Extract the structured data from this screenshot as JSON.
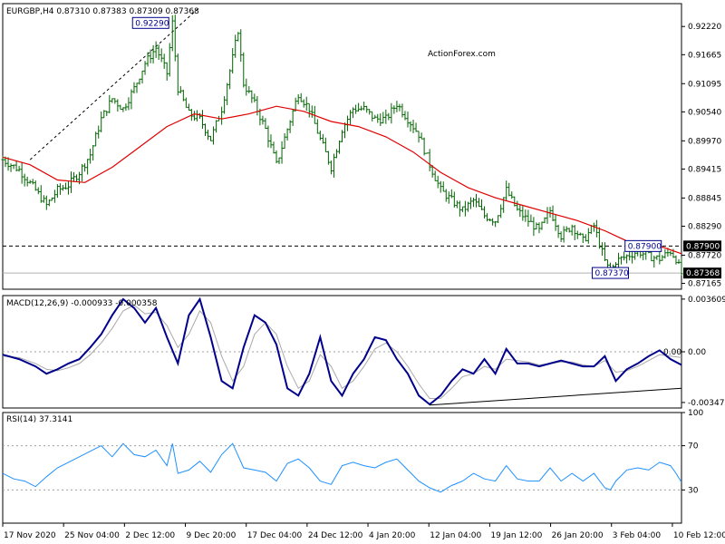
{
  "chart_data": [
    {
      "type": "candlestick",
      "panel": "price",
      "header": "EURGBP,H4  0.87310 0.87383 0.87309 0.87368",
      "watermark": "ActionForex.com",
      "ylim": [
        0.8705,
        0.9267
      ],
      "yticks": [
        "0.92220",
        "0.91665",
        "0.91095",
        "0.90540",
        "0.89970",
        "0.89415",
        "0.88845",
        "0.88290",
        "0.87720",
        "0.87165"
      ],
      "x_labels": [
        "17 Nov 2020",
        "25 Nov 04:00",
        "2 Dec 12:00",
        "9 Dec 20:00",
        "17 Dec 04:00",
        "24 Dec 12:00",
        "4 Jan 20:00",
        "12 Jan 04:00",
        "19 Jan 12:00",
        "26 Jan 20:00",
        "3 Feb 04:00",
        "10 Feb 12:00"
      ],
      "close_path": [
        [
          0,
          0.896
        ],
        [
          6,
          0.894
        ],
        [
          12,
          0.89
        ],
        [
          16,
          0.887
        ],
        [
          20,
          0.89
        ],
        [
          24,
          0.891
        ],
        [
          28,
          0.8935
        ],
        [
          32,
          0.897
        ],
        [
          36,
          0.904
        ],
        [
          40,
          0.908
        ],
        [
          44,
          0.906
        ],
        [
          48,
          0.91
        ],
        [
          52,
          0.915
        ],
        [
          56,
          0.918
        ],
        [
          60,
          0.913
        ],
        [
          62,
          0.9229
        ],
        [
          64,
          0.91
        ],
        [
          68,
          0.905
        ],
        [
          72,
          0.904
        ],
        [
          76,
          0.9
        ],
        [
          80,
          0.906
        ],
        [
          84,
          0.916
        ],
        [
          86,
          0.9215
        ],
        [
          88,
          0.911
        ],
        [
          92,
          0.907
        ],
        [
          96,
          0.902
        ],
        [
          100,
          0.895
        ],
        [
          104,
          0.902
        ],
        [
          108,
          0.909
        ],
        [
          112,
          0.906
        ],
        [
          116,
          0.9
        ],
        [
          120,
          0.8945
        ],
        [
          124,
          0.902
        ],
        [
          128,
          0.906
        ],
        [
          132,
          0.906
        ],
        [
          136,
          0.904
        ],
        [
          140,
          0.904
        ],
        [
          144,
          0.907
        ],
        [
          148,
          0.904
        ],
        [
          152,
          0.901
        ],
        [
          156,
          0.895
        ],
        [
          160,
          0.89
        ],
        [
          164,
          0.888
        ],
        [
          168,
          0.886
        ],
        [
          172,
          0.888
        ],
        [
          176,
          0.885
        ],
        [
          180,
          0.884
        ],
        [
          184,
          0.89
        ],
        [
          188,
          0.886
        ],
        [
          192,
          0.884
        ],
        [
          196,
          0.882
        ],
        [
          200,
          0.886
        ],
        [
          204,
          0.881
        ],
        [
          208,
          0.883
        ],
        [
          212,
          0.88
        ],
        [
          216,
          0.883
        ],
        [
          220,
          0.876
        ],
        [
          222,
          0.8737
        ],
        [
          224,
          0.876
        ],
        [
          228,
          0.877
        ],
        [
          232,
          0.878
        ],
        [
          236,
          0.877
        ],
        [
          240,
          0.8765
        ],
        [
          244,
          0.878
        ],
        [
          246,
          0.8765
        ],
        [
          248,
          0.8736
        ]
      ],
      "sma": [
        [
          0,
          0.8965
        ],
        [
          10,
          0.895
        ],
        [
          20,
          0.892
        ],
        [
          30,
          0.8915
        ],
        [
          40,
          0.8945
        ],
        [
          50,
          0.8985
        ],
        [
          60,
          0.9025
        ],
        [
          70,
          0.905
        ],
        [
          80,
          0.904
        ],
        [
          90,
          0.905
        ],
        [
          100,
          0.9065
        ],
        [
          110,
          0.9055
        ],
        [
          120,
          0.9035
        ],
        [
          130,
          0.9025
        ],
        [
          140,
          0.9005
        ],
        [
          150,
          0.8975
        ],
        [
          160,
          0.8935
        ],
        [
          170,
          0.8905
        ],
        [
          180,
          0.8885
        ],
        [
          190,
          0.887
        ],
        [
          200,
          0.8855
        ],
        [
          210,
          0.884
        ],
        [
          220,
          0.882
        ],
        [
          230,
          0.8795
        ],
        [
          240,
          0.879
        ],
        [
          248,
          0.8775
        ]
      ],
      "ma_color": "#e00000",
      "candle_color": "#006400",
      "levels": [
        {
          "label": "0.87900",
          "value": 0.879,
          "style": "dashed"
        },
        {
          "label": "0.87368",
          "value": 0.87368,
          "style": "solid-gray"
        }
      ],
      "annotations": [
        {
          "label": "0.92290",
          "value": 0.9229,
          "index": 62
        },
        {
          "label": "0.87900",
          "value": 0.879,
          "index": 234
        },
        {
          "label": "0.87370",
          "value": 0.8737,
          "index": 222
        }
      ],
      "trendline": [
        [
          10,
          0.896
        ],
        [
          72,
          0.926
        ]
      ]
    },
    {
      "type": "line",
      "panel": "macd",
      "header": "MACD(12,26,9) -0.000933 -0.000358",
      "ylim": [
        -0.00385,
        0.00385
      ],
      "yticks": [
        "0.003609",
        "0.00",
        "-0.003472"
      ],
      "zero_label": "0.00",
      "macd": [
        [
          0,
          -0.0002
        ],
        [
          6,
          -0.0005
        ],
        [
          12,
          -0.001
        ],
        [
          16,
          -0.0015
        ],
        [
          20,
          -0.0012
        ],
        [
          24,
          -0.0008
        ],
        [
          28,
          -0.0005
        ],
        [
          32,
          0.0003
        ],
        [
          36,
          0.0012
        ],
        [
          40,
          0.0025
        ],
        [
          44,
          0.0036
        ],
        [
          48,
          0.003
        ],
        [
          52,
          0.002
        ],
        [
          56,
          0.003
        ],
        [
          60,
          0.001
        ],
        [
          64,
          -0.0008
        ],
        [
          68,
          0.0025
        ],
        [
          72,
          0.0036
        ],
        [
          76,
          0.001
        ],
        [
          80,
          -0.002
        ],
        [
          84,
          -0.0025
        ],
        [
          88,
          0.0003
        ],
        [
          92,
          0.0025
        ],
        [
          96,
          0.002
        ],
        [
          100,
          0.0005
        ],
        [
          104,
          -0.0025
        ],
        [
          108,
          -0.003
        ],
        [
          112,
          -0.0015
        ],
        [
          116,
          0.001
        ],
        [
          120,
          -0.002
        ],
        [
          124,
          -0.003
        ],
        [
          128,
          -0.0015
        ],
        [
          132,
          -0.0005
        ],
        [
          136,
          0.001
        ],
        [
          140,
          0.0008
        ],
        [
          144,
          -0.0005
        ],
        [
          148,
          -0.0015
        ],
        [
          152,
          -0.003
        ],
        [
          156,
          -0.0036
        ],
        [
          160,
          -0.003
        ],
        [
          164,
          -0.002
        ],
        [
          168,
          -0.0012
        ],
        [
          172,
          -0.0015
        ],
        [
          176,
          -0.0005
        ],
        [
          180,
          -0.0015
        ],
        [
          184,
          0.0002
        ],
        [
          188,
          -0.0008
        ],
        [
          192,
          -0.0008
        ],
        [
          196,
          -0.001
        ],
        [
          200,
          -0.0008
        ],
        [
          204,
          -0.0006
        ],
        [
          208,
          -0.0008
        ],
        [
          212,
          -0.001
        ],
        [
          216,
          -0.001
        ],
        [
          220,
          -0.0003
        ],
        [
          224,
          -0.002
        ],
        [
          228,
          -0.0012
        ],
        [
          232,
          -0.0008
        ],
        [
          236,
          -0.0003
        ],
        [
          240,
          0.0001
        ],
        [
          244,
          -0.0005
        ],
        [
          248,
          -0.0009
        ]
      ],
      "signal": [
        [
          0,
          -0.0003
        ],
        [
          6,
          -0.0004
        ],
        [
          12,
          -0.0008
        ],
        [
          16,
          -0.0012
        ],
        [
          20,
          -0.0013
        ],
        [
          24,
          -0.0011
        ],
        [
          28,
          -0.0008
        ],
        [
          32,
          -0.0002
        ],
        [
          36,
          0.0006
        ],
        [
          40,
          0.0016
        ],
        [
          44,
          0.0028
        ],
        [
          48,
          0.0032
        ],
        [
          52,
          0.0026
        ],
        [
          56,
          0.0027
        ],
        [
          60,
          0.0018
        ],
        [
          64,
          0.0003
        ],
        [
          68,
          0.0012
        ],
        [
          72,
          0.0028
        ],
        [
          76,
          0.002
        ],
        [
          80,
          -0.0003
        ],
        [
          84,
          -0.002
        ],
        [
          88,
          -0.001
        ],
        [
          92,
          0.0012
        ],
        [
          96,
          0.002
        ],
        [
          100,
          0.0012
        ],
        [
          104,
          -0.001
        ],
        [
          108,
          -0.0025
        ],
        [
          112,
          -0.002
        ],
        [
          116,
          -0.0002
        ],
        [
          120,
          -0.001
        ],
        [
          124,
          -0.0025
        ],
        [
          128,
          -0.002
        ],
        [
          132,
          -0.001
        ],
        [
          136,
          0.0002
        ],
        [
          140,
          0.0006
        ],
        [
          144,
          0.0
        ],
        [
          148,
          -0.001
        ],
        [
          152,
          -0.0022
        ],
        [
          156,
          -0.0032
        ],
        [
          160,
          -0.0032
        ],
        [
          164,
          -0.0025
        ],
        [
          168,
          -0.0017
        ],
        [
          172,
          -0.0015
        ],
        [
          176,
          -0.001
        ],
        [
          180,
          -0.0012
        ],
        [
          184,
          -0.0005
        ],
        [
          188,
          -0.0006
        ],
        [
          192,
          -0.0007
        ],
        [
          196,
          -0.0009
        ],
        [
          200,
          -0.0008
        ],
        [
          204,
          -0.0007
        ],
        [
          208,
          -0.0007
        ],
        [
          212,
          -0.0009
        ],
        [
          216,
          -0.001
        ],
        [
          220,
          -0.0006
        ],
        [
          224,
          -0.0014
        ],
        [
          228,
          -0.0013
        ],
        [
          232,
          -0.001
        ],
        [
          236,
          -0.0006
        ],
        [
          240,
          -0.0002
        ],
        [
          244,
          -0.0003
        ],
        [
          248,
          -0.0004
        ]
      ],
      "macd_color": "#00008b",
      "signal_color": "#a9a9a9",
      "trendline": [
        [
          156,
          -0.00365
        ],
        [
          248,
          -0.0025
        ]
      ]
    },
    {
      "type": "line",
      "panel": "rsi",
      "header": "RSI(14) 37.3141",
      "ylim": [
        0,
        100
      ],
      "yticks": [
        "100",
        "70",
        "30"
      ],
      "levels": [
        70,
        30
      ],
      "rsi": [
        [
          0,
          45
        ],
        [
          4,
          40
        ],
        [
          8,
          38
        ],
        [
          12,
          33
        ],
        [
          16,
          42
        ],
        [
          20,
          50
        ],
        [
          24,
          55
        ],
        [
          28,
          60
        ],
        [
          32,
          65
        ],
        [
          36,
          70
        ],
        [
          40,
          60
        ],
        [
          44,
          72
        ],
        [
          48,
          62
        ],
        [
          52,
          60
        ],
        [
          56,
          66
        ],
        [
          60,
          52
        ],
        [
          62,
          72
        ],
        [
          64,
          45
        ],
        [
          68,
          48
        ],
        [
          72,
          56
        ],
        [
          76,
          46
        ],
        [
          80,
          62
        ],
        [
          84,
          72
        ],
        [
          88,
          50
        ],
        [
          92,
          48
        ],
        [
          96,
          46
        ],
        [
          100,
          38
        ],
        [
          104,
          54
        ],
        [
          108,
          58
        ],
        [
          112,
          50
        ],
        [
          116,
          38
        ],
        [
          120,
          35
        ],
        [
          124,
          52
        ],
        [
          128,
          55
        ],
        [
          132,
          52
        ],
        [
          136,
          50
        ],
        [
          140,
          55
        ],
        [
          144,
          58
        ],
        [
          148,
          48
        ],
        [
          152,
          38
        ],
        [
          156,
          32
        ],
        [
          160,
          28
        ],
        [
          164,
          34
        ],
        [
          168,
          38
        ],
        [
          172,
          45
        ],
        [
          176,
          40
        ],
        [
          180,
          38
        ],
        [
          184,
          52
        ],
        [
          188,
          40
        ],
        [
          192,
          38
        ],
        [
          196,
          38
        ],
        [
          200,
          50
        ],
        [
          204,
          38
        ],
        [
          208,
          45
        ],
        [
          212,
          38
        ],
        [
          216,
          45
        ],
        [
          220,
          32
        ],
        [
          222,
          30
        ],
        [
          224,
          38
        ],
        [
          228,
          48
        ],
        [
          232,
          50
        ],
        [
          236,
          48
        ],
        [
          240,
          55
        ],
        [
          244,
          52
        ],
        [
          246,
          45
        ],
        [
          248,
          37
        ]
      ],
      "line_color": "#1e90ff"
    }
  ]
}
